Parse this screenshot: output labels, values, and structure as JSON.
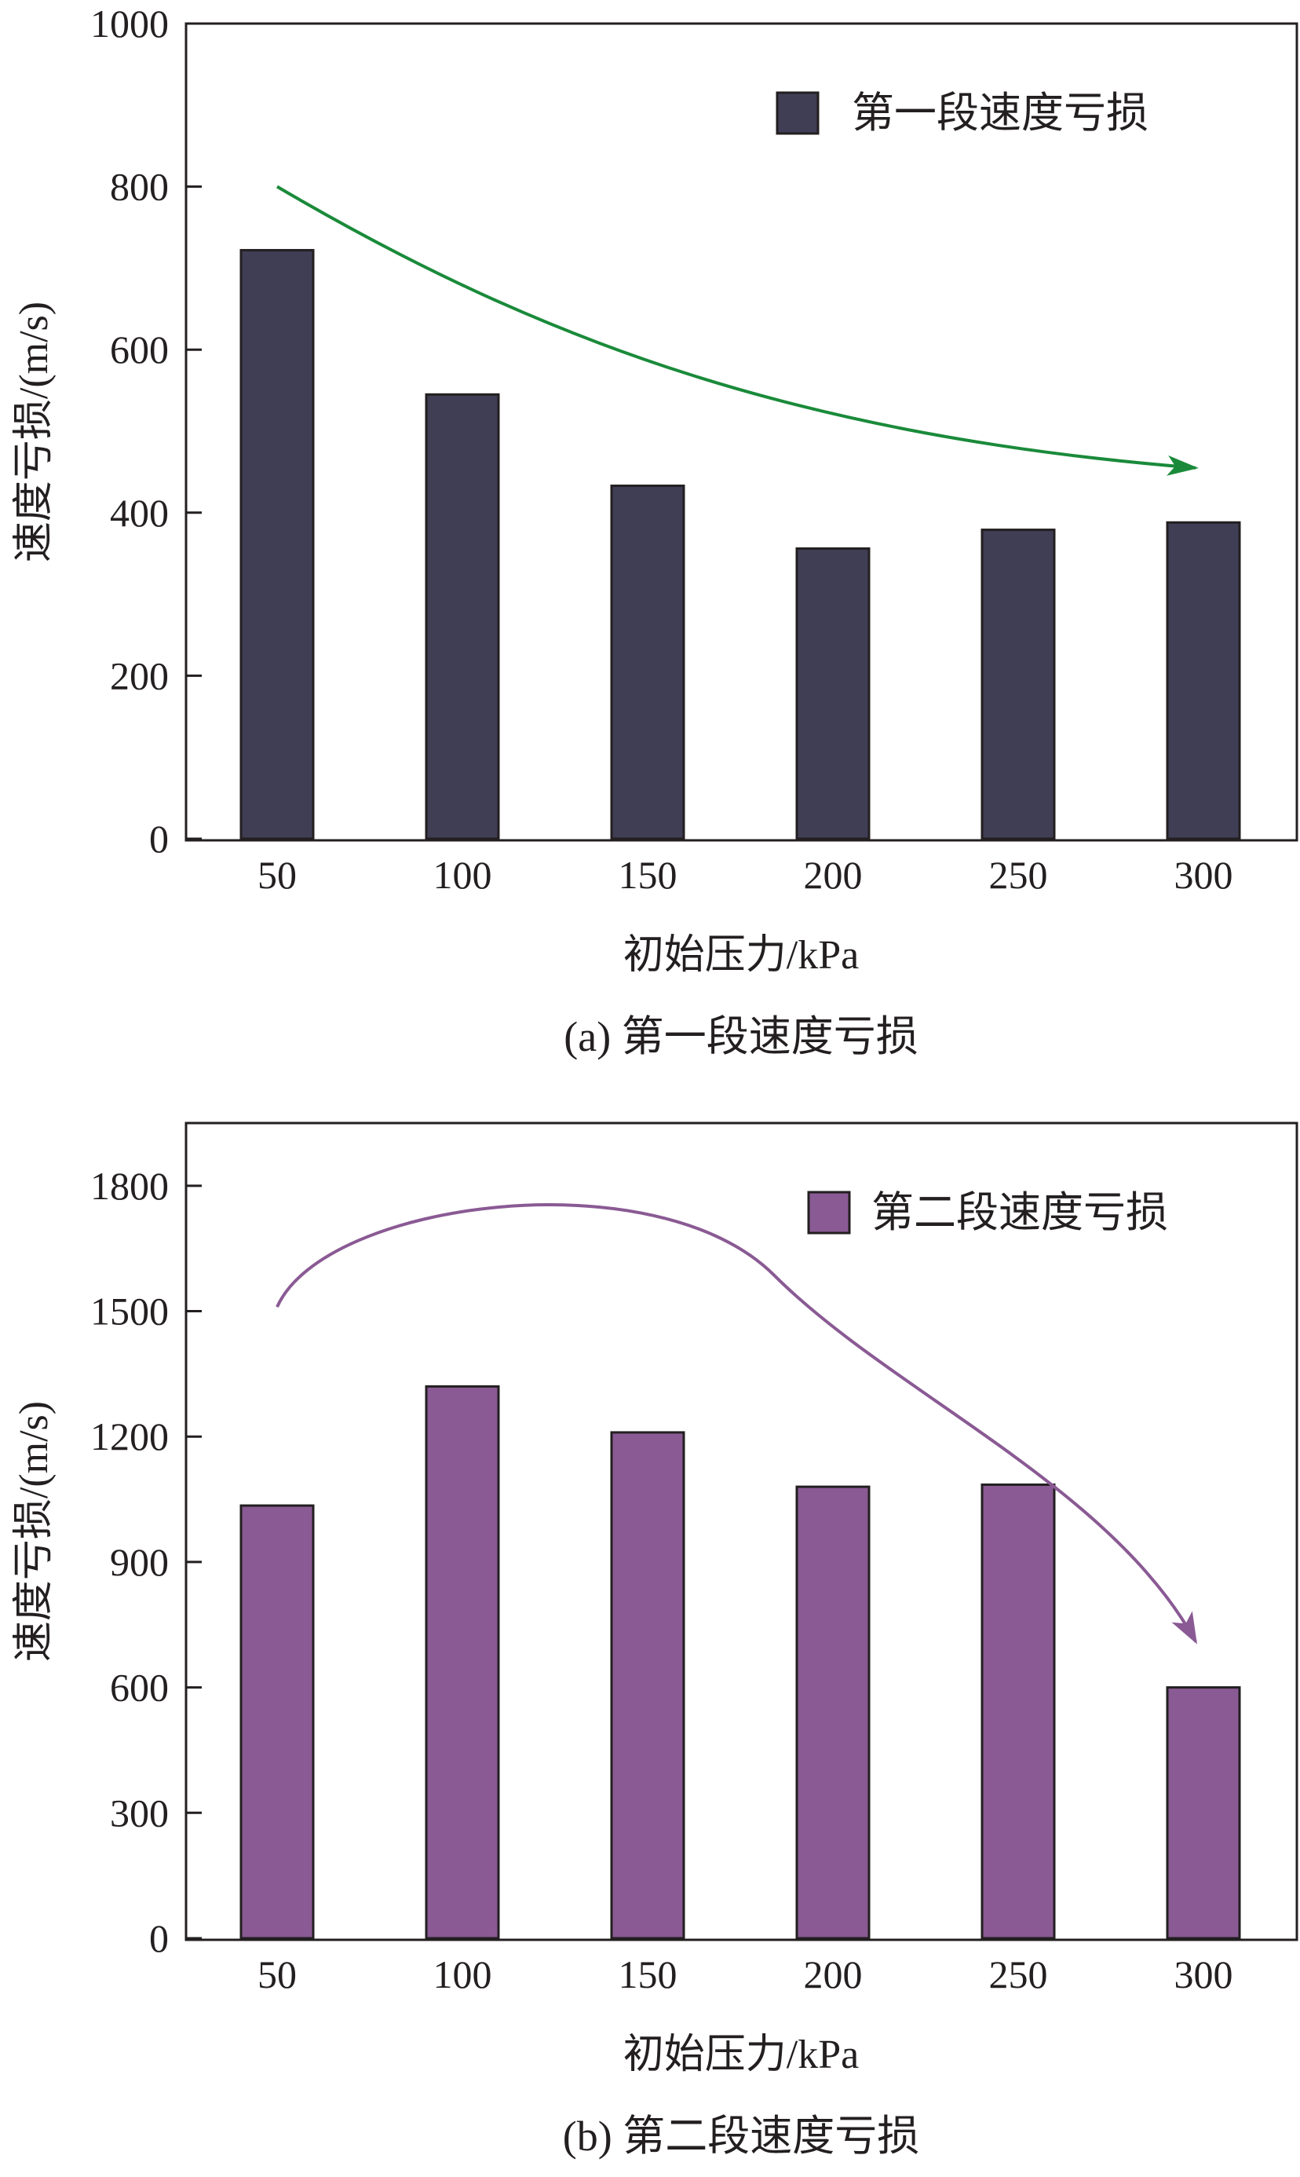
{
  "chart_data": [
    {
      "type": "bar",
      "caption": "(a) 第一段速度亏损",
      "xlabel": "初始压力/kPa",
      "ylabel": "速度亏损/(m/s)",
      "categories": [
        "50",
        "100",
        "150",
        "200",
        "250",
        "300"
      ],
      "series": [
        {
          "name": "第一段速度亏损",
          "values": [
            722,
            545,
            433,
            356,
            379,
            388
          ],
          "color": "#3f3e55"
        }
      ],
      "ylim": [
        0,
        1000
      ],
      "yticks": [
        0,
        200,
        400,
        600,
        800,
        1000
      ],
      "legend_position": "top-right",
      "grid": false,
      "trend_arrow": {
        "color": "#1a8a3a",
        "shape": "decreasing curve",
        "from": [
          50,
          800
        ],
        "to": [
          300,
          455
        ]
      }
    },
    {
      "type": "bar",
      "caption": "(b) 第二段速度亏损",
      "xlabel": "初始压力/kPa",
      "ylabel": "速度亏损/(m/s)",
      "categories": [
        "50",
        "100",
        "150",
        "200",
        "250",
        "300"
      ],
      "series": [
        {
          "name": "第二段速度亏损",
          "values": [
            1035,
            1320,
            1210,
            1080,
            1085,
            600
          ],
          "color": "#8a5a94"
        }
      ],
      "ylim": [
        0,
        1950
      ],
      "yticks": [
        0,
        300,
        600,
        900,
        1200,
        1500,
        1800
      ],
      "legend_position": "top-right",
      "grid": false,
      "trend_arrow": {
        "color": "#8a5a94",
        "shape": "rise then fall",
        "from": [
          50,
          1510
        ],
        "peak": [
          110,
          1755
        ],
        "to": [
          300,
          710
        ]
      }
    }
  ]
}
